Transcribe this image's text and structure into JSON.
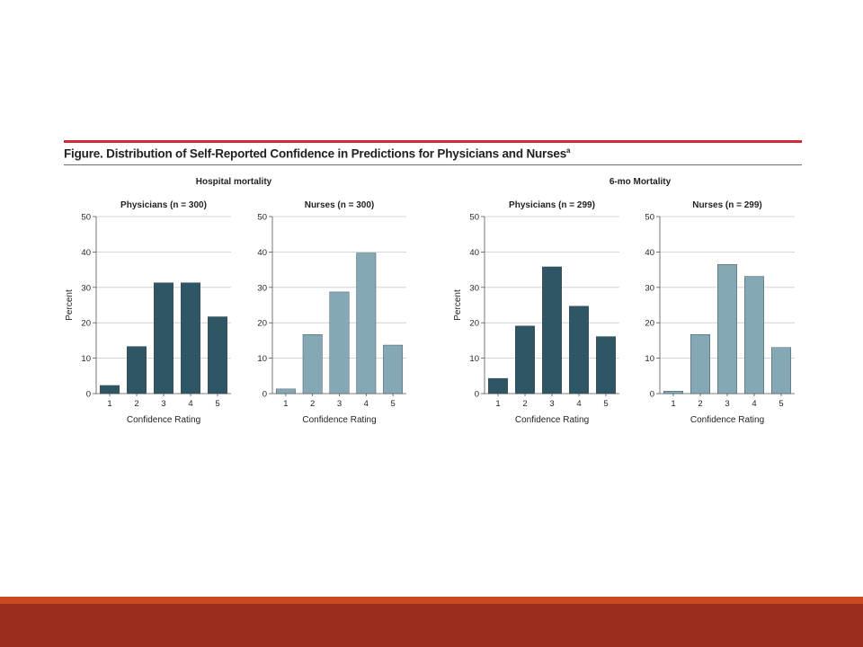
{
  "figure": {
    "title": "Figure. Distribution of Self-Reported Confidence in Predictions for Physicians and Nurses",
    "title_superscript": "a",
    "group_titles": [
      "Hospital mortality",
      "6-mo Mortality"
    ]
  },
  "colors": {
    "physicians_bar": "#2f5664",
    "nurses_bar": "#85a8b7",
    "title_rule": "#cf2a36",
    "footer_band": "#9b2d1f",
    "footer_accent": "#c94a1e"
  },
  "chart_data": [
    {
      "type": "bar",
      "group": "Hospital mortality",
      "title": "Physicians (n = 300)",
      "xlabel": "Confidence Rating",
      "ylabel": "Percent",
      "categories": [
        "1",
        "2",
        "3",
        "4",
        "5"
      ],
      "values": [
        2.3,
        13.3,
        31.3,
        31.3,
        21.7
      ],
      "ylim": [
        0,
        50
      ],
      "yticks": [
        0,
        10,
        20,
        30,
        40,
        50
      ],
      "grid": true,
      "color": "#2f5664"
    },
    {
      "type": "bar",
      "group": "Hospital mortality",
      "title": "Nurses (n = 300)",
      "xlabel": "Confidence Rating",
      "ylabel": "",
      "categories": [
        "1",
        "2",
        "3",
        "4",
        "5"
      ],
      "values": [
        1.3,
        16.7,
        28.7,
        39.7,
        13.7
      ],
      "ylim": [
        0,
        50
      ],
      "yticks": [
        0,
        10,
        20,
        30,
        40,
        50
      ],
      "grid": true,
      "color": "#85a8b7"
    },
    {
      "type": "bar",
      "group": "6-mo Mortality",
      "title": "Physicians (n = 299)",
      "xlabel": "Confidence Rating",
      "ylabel": "Percent",
      "categories": [
        "1",
        "2",
        "3",
        "4",
        "5"
      ],
      "values": [
        4.3,
        19.1,
        35.8,
        24.7,
        16.1
      ],
      "ylim": [
        0,
        50
      ],
      "yticks": [
        0,
        10,
        20,
        30,
        40,
        50
      ],
      "grid": true,
      "color": "#2f5664"
    },
    {
      "type": "bar",
      "group": "6-mo Mortality",
      "title": "Nurses (n = 299)",
      "xlabel": "Confidence Rating",
      "ylabel": "",
      "categories": [
        "1",
        "2",
        "3",
        "4",
        "5"
      ],
      "values": [
        0.7,
        16.7,
        36.5,
        33.1,
        13.0
      ],
      "ylim": [
        0,
        50
      ],
      "yticks": [
        0,
        10,
        20,
        30,
        40,
        50
      ],
      "grid": true,
      "color": "#85a8b7"
    }
  ]
}
